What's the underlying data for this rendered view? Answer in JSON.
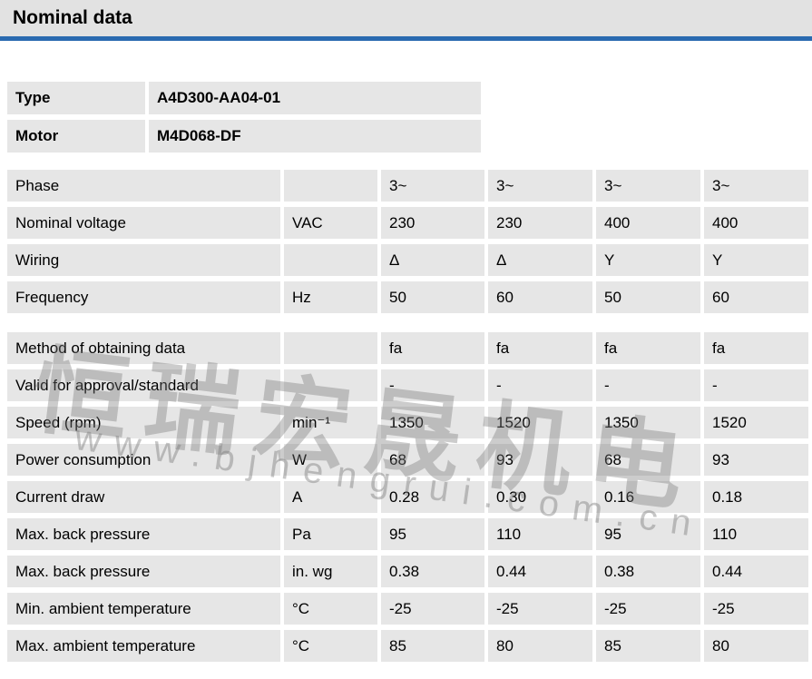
{
  "page": {
    "title": "Nominal data"
  },
  "product": {
    "rows": [
      {
        "label": "Type",
        "value": "A4D300-AA04-01"
      },
      {
        "label": "Motor",
        "value": "M4D068-DF"
      }
    ]
  },
  "table": {
    "groups": [
      {
        "rows": [
          {
            "label": "Phase",
            "unit": "",
            "values": [
              "3~",
              "3~",
              "3~",
              "3~"
            ]
          },
          {
            "label": "Nominal voltage",
            "unit": "VAC",
            "values": [
              "230",
              "230",
              "400",
              "400"
            ]
          },
          {
            "label": "Wiring",
            "unit": "",
            "values": [
              "Δ",
              "Δ",
              "Y",
              "Y"
            ]
          },
          {
            "label": "Frequency",
            "unit": "Hz",
            "values": [
              "50",
              "60",
              "50",
              "60"
            ]
          }
        ]
      },
      {
        "rows": [
          {
            "label": "Method of obtaining data",
            "unit": "",
            "values": [
              "fa",
              "fa",
              "fa",
              "fa"
            ]
          },
          {
            "label": "Valid for approval/standard",
            "unit": "",
            "values": [
              "-",
              "-",
              "-",
              "-"
            ]
          },
          {
            "label": "Speed (rpm)",
            "unit": "min⁻¹",
            "values": [
              "1350",
              "1520",
              "1350",
              "1520"
            ]
          },
          {
            "label": "Power consumption",
            "unit": "W",
            "values": [
              "68",
              "93",
              "68",
              "93"
            ]
          },
          {
            "label": "Current draw",
            "unit": "A",
            "values": [
              "0.28",
              "0.30",
              "0.16",
              "0.18"
            ]
          },
          {
            "label": "Max. back pressure",
            "unit": "Pa",
            "values": [
              "95",
              "110",
              "95",
              "110"
            ]
          },
          {
            "label": "Max. back pressure",
            "unit": "in. wg",
            "values": [
              "0.38",
              "0.44",
              "0.38",
              "0.44"
            ]
          },
          {
            "label": "Min. ambient temperature",
            "unit": "°C",
            "values": [
              "-25",
              "-25",
              "-25",
              "-25"
            ]
          },
          {
            "label": "Max. ambient temperature",
            "unit": "°C",
            "values": [
              "85",
              "80",
              "85",
              "80"
            ]
          }
        ]
      }
    ]
  },
  "watermark": {
    "line1": "恒瑞宏晟机电",
    "line2": "www.bjhengrui.com.cn"
  },
  "colors": {
    "header_bg": "#e2e2e2",
    "accent_blue": "#2a6ab0",
    "cell_bg": "#e6e6e6",
    "text": "#000000"
  }
}
